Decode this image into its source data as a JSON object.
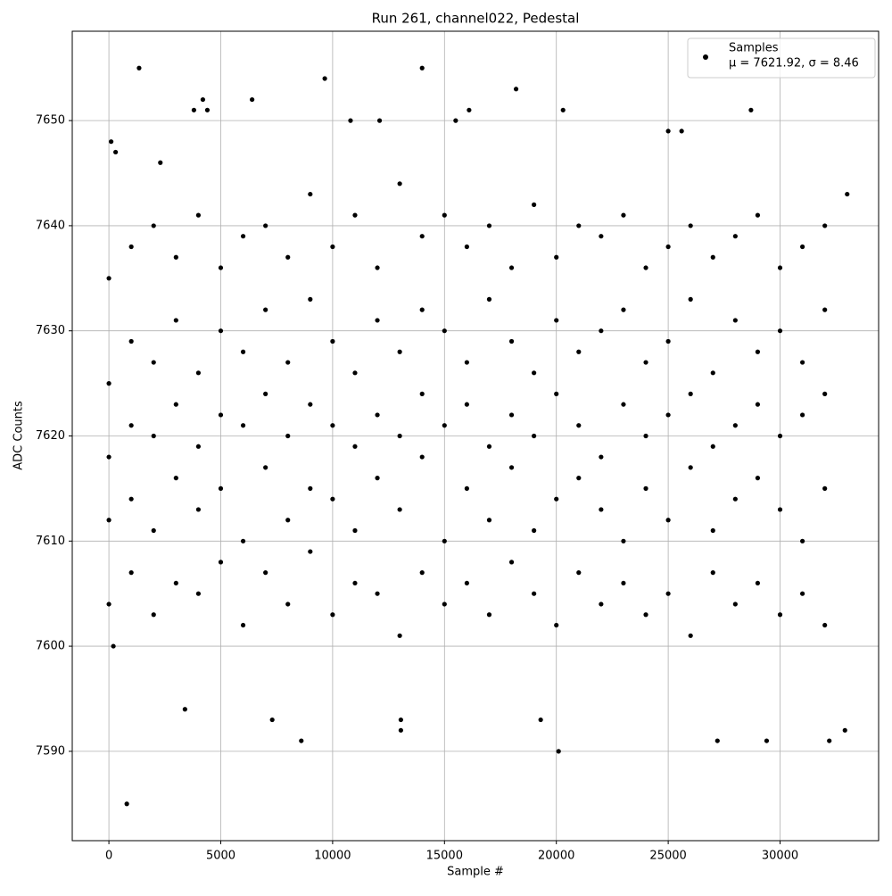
{
  "chart_data": {
    "type": "scatter",
    "title": "Run 261, channel022, Pedestal",
    "xlabel": "Sample #",
    "ylabel": "ADC Counts",
    "xlim": [
      -1638,
      34405
    ],
    "ylim": [
      7581.5,
      7658.5
    ],
    "xticks": [
      0,
      5000,
      10000,
      15000,
      20000,
      25000,
      30000
    ],
    "yticks": [
      7590,
      7600,
      7610,
      7620,
      7630,
      7640,
      7650
    ],
    "grid": true,
    "legend": "upper right",
    "legend_stats": "μ = 7621.92, σ = 8.46",
    "x": [
      0,
      0,
      0,
      0,
      0,
      1000,
      1000,
      1000,
      1000,
      1000,
      2000,
      2000,
      2000,
      2000,
      2000,
      3000,
      3000,
      3000,
      3000,
      3000,
      4000,
      4000,
      4000,
      4000,
      4000,
      5000,
      5000,
      5000,
      5000,
      5000,
      6000,
      6000,
      6000,
      6000,
      6000,
      7000,
      7000,
      7000,
      7000,
      7000,
      8000,
      8000,
      8000,
      8000,
      8000,
      9000,
      9000,
      9000,
      9000,
      9000,
      10000,
      10000,
      10000,
      10000,
      10000,
      11000,
      11000,
      11000,
      11000,
      11000,
      12000,
      12000,
      12000,
      12000,
      12000,
      13000,
      13000,
      13000,
      13000,
      13000,
      14000,
      14000,
      14000,
      14000,
      14000,
      15000,
      15000,
      15000,
      15000,
      15000,
      16000,
      16000,
      16000,
      16000,
      16000,
      17000,
      17000,
      17000,
      17000,
      17000,
      18000,
      18000,
      18000,
      18000,
      18000,
      19000,
      19000,
      19000,
      19000,
      19000,
      20000,
      20000,
      20000,
      20000,
      20000,
      21000,
      21000,
      21000,
      21000,
      21000,
      22000,
      22000,
      22000,
      22000,
      22000,
      23000,
      23000,
      23000,
      23000,
      23000,
      24000,
      24000,
      24000,
      24000,
      24000,
      25000,
      25000,
      25000,
      25000,
      25000,
      26000,
      26000,
      26000,
      26000,
      26000,
      27000,
      27000,
      27000,
      27000,
      27000,
      28000,
      28000,
      28000,
      28000,
      28000,
      29000,
      29000,
      29000,
      29000,
      29000,
      30000,
      30000,
      30000,
      30000,
      30000,
      31000,
      31000,
      31000,
      31000,
      31000,
      32000,
      32000,
      32000,
      32000,
      32000,
      800,
      1350,
      9650,
      14000,
      18200,
      20100,
      8600,
      13050,
      13050,
      27200,
      29400,
      32200,
      32900,
      28700,
      4200,
      6400,
      3400,
      19300,
      20300,
      16100,
      3800,
      4400,
      12100,
      10800,
      15500,
      25000,
      25600,
      100,
      300,
      200,
      2300,
      7300,
      33000
    ],
    "series": [
      {
        "name": "Samples",
        "color": "#000000",
        "values": [
          7604,
          7612,
          7618,
          7625,
          7635,
          7607,
          7614,
          7621,
          7629,
          7638,
          7603,
          7611,
          7620,
          7627,
          7640,
          7606,
          7616,
          7623,
          7631,
          7637,
          7605,
          7613,
          7619,
          7626,
          7641,
          7608,
          7615,
          7622,
          7630,
          7636,
          7602,
          7610,
          7621,
          7628,
          7639,
          7607,
          7617,
          7624,
          7632,
          7640,
          7604,
          7612,
          7620,
          7627,
          7637,
          7609,
          7615,
          7623,
          7633,
          7643,
          7603,
          7614,
          7621,
          7629,
          7638,
          7606,
          7611,
          7619,
          7626,
          7641,
          7605,
          7616,
          7622,
          7631,
          7636,
          7601,
          7613,
          7620,
          7628,
          7644,
          7607,
          7618,
          7624,
          7632,
          7639,
          7604,
          7610,
          7621,
          7630,
          7641,
          7606,
          7615,
          7623,
          7627,
          7638,
          7603,
          7612,
          7619,
          7633,
          7640,
          7608,
          7617,
          7622,
          7629,
          7636,
          7605,
          7611,
          7620,
          7626,
          7642,
          7602,
          7614,
          7624,
          7631,
          7637,
          7607,
          7616,
          7621,
          7628,
          7640,
          7604,
          7613,
          7618,
          7630,
          7639,
          7606,
          7610,
          7623,
          7632,
          7641,
          7603,
          7615,
          7620,
          7627,
          7636,
          7605,
          7612,
          7622,
          7629,
          7638,
          7601,
          7617,
          7624,
          7633,
          7640,
          7607,
          7611,
          7619,
          7626,
          7637,
          7604,
          7614,
          7621,
          7631,
          7639,
          7606,
          7616,
          7623,
          7628,
          7641,
          7603,
          7613,
          7620,
          7630,
          7636,
          7605,
          7610,
          7622,
          7627,
          7638,
          7602,
          7615,
          7624,
          7632,
          7640,
          7585,
          7655,
          7654,
          7655,
          7653,
          7590,
          7591,
          7592,
          7593,
          7591,
          7591,
          7591,
          7592,
          7651,
          7652,
          7652,
          7594,
          7593,
          7651,
          7651,
          7651,
          7651,
          7650,
          7650,
          7650,
          7649,
          7649,
          7648,
          7647,
          7600,
          7646,
          7593,
          7643
        ]
      }
    ]
  }
}
